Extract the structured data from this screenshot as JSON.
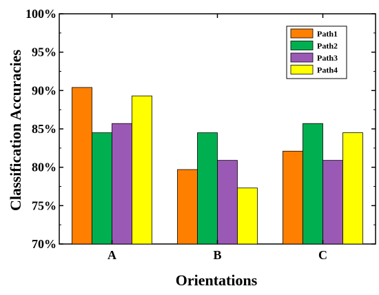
{
  "chart_data": {
    "type": "bar",
    "title": "",
    "xlabel": "Orientations",
    "ylabel": "Classification Accuracies",
    "categories": [
      "A",
      "B",
      "C"
    ],
    "ylim": [
      70,
      100
    ],
    "yticks": [
      70,
      75,
      80,
      85,
      90,
      95,
      100
    ],
    "ytick_labels": [
      "70%",
      "75%",
      "80%",
      "85%",
      "90%",
      "95%",
      "100%"
    ],
    "grid": false,
    "legend_position": "top-right",
    "series": [
      {
        "name": "Path1",
        "color": "#FF7F00",
        "values": [
          90.4,
          79.7,
          82.1
        ]
      },
      {
        "name": "Path2",
        "color": "#00B050",
        "values": [
          84.5,
          84.5,
          85.7
        ]
      },
      {
        "name": "Path3",
        "color": "#9B59B6",
        "values": [
          85.7,
          80.9,
          80.9
        ]
      },
      {
        "name": "Path4",
        "color": "#FFFF00",
        "values": [
          89.3,
          77.3,
          84.5
        ]
      }
    ]
  }
}
